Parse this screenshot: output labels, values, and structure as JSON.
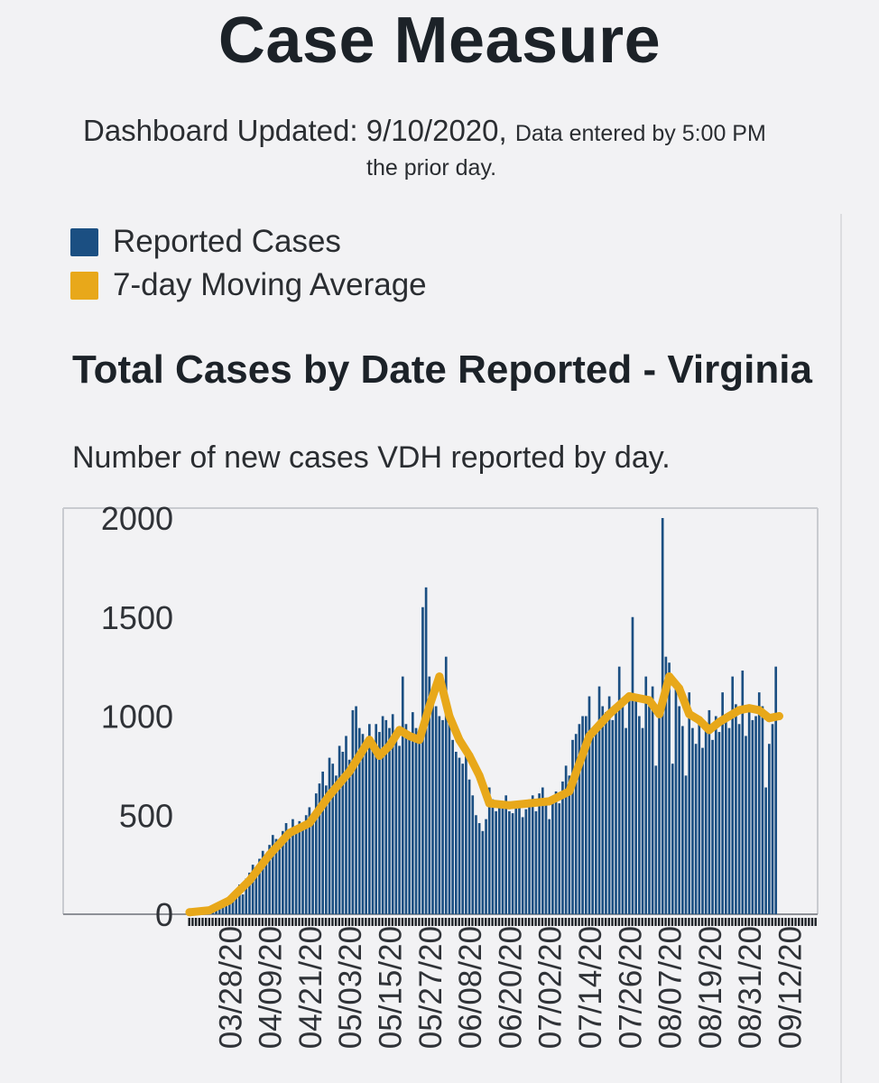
{
  "header": {
    "title": "Case Measure",
    "updated_text": "Dashboard Updated: 9/10/2020,",
    "data_note": "Data entered by 5:00 PM",
    "data_note_line2": "the prior day."
  },
  "legend": {
    "items": [
      {
        "label": "Reported Cases",
        "color": "#1b4f82"
      },
      {
        "label": "7-day Moving Average",
        "color": "#e8a81a"
      }
    ]
  },
  "chart_title": "Total Cases by Date Reported - Virginia",
  "chart_subtitle": "Number of new cases VDH reported by day.",
  "chart_data": {
    "type": "bar",
    "title": "Total Cases by Date Reported - Virginia",
    "subtitle": "Number of new cases VDH reported by day.",
    "xlabel": "",
    "ylabel": "",
    "ylim": [
      0,
      2000
    ],
    "yticks": [
      0,
      500,
      1000,
      1500,
      2000
    ],
    "grid": false,
    "legend_position": "top-left",
    "x_tick_labels": [
      "03/28/20",
      "04/09/20",
      "04/21/20",
      "05/03/20",
      "05/15/20",
      "05/27/20",
      "06/08/20",
      "06/20/20",
      "07/02/20",
      "07/14/20",
      "07/26/20",
      "08/07/20",
      "08/19/20",
      "08/31/20",
      "09/12/20"
    ],
    "axis_date_range": [
      "03/16/20",
      "09/20/20"
    ],
    "weekly_values": [
      {
        "week_of": "03/16/20",
        "values": [
          8,
          12,
          10,
          15,
          18,
          22,
          25
        ]
      },
      {
        "week_of": "03/23/20",
        "values": [
          30,
          40,
          35,
          55,
          60,
          80,
          70
        ]
      },
      {
        "week_of": "03/30/20",
        "values": [
          120,
          150,
          100,
          180,
          210,
          250,
          230
        ]
      },
      {
        "week_of": "04/06/20",
        "values": [
          280,
          320,
          260,
          350,
          400,
          380,
          330
        ]
      },
      {
        "week_of": "04/13/20",
        "values": [
          420,
          460,
          390,
          480,
          430,
          470,
          440
        ]
      },
      {
        "week_of": "04/20/20",
        "values": [
          500,
          540,
          470,
          610,
          660,
          720,
          650
        ]
      },
      {
        "week_of": "04/27/20",
        "values": [
          790,
          760,
          700,
          850,
          820,
          900,
          780
        ]
      },
      {
        "week_of": "05/04/20",
        "values": [
          1030,
          1050,
          940,
          910,
          880,
          960,
          850
        ]
      },
      {
        "week_of": "05/11/20",
        "values": [
          960,
          920,
          1000,
          980,
          940,
          1010,
          900
        ]
      },
      {
        "week_of": "05/18/20",
        "values": [
          850,
          1200,
          960,
          900,
          1020,
          940,
          870
        ]
      },
      {
        "week_of": "05/25/20",
        "values": [
          1550,
          1650,
          1200,
          1100,
          1050,
          1000,
          980
        ]
      },
      {
        "week_of": "06/01/20",
        "values": [
          1300,
          1050,
          880,
          820,
          790,
          760,
          840
        ]
      },
      {
        "week_of": "06/08/20",
        "values": [
          680,
          600,
          500,
          460,
          420,
          480,
          640
        ]
      },
      {
        "week_of": "06/15/20",
        "values": [
          580,
          520,
          560,
          540,
          600,
          520,
          510
        ]
      },
      {
        "week_of": "06/22/20",
        "values": [
          560,
          540,
          490,
          530,
          570,
          600,
          520
        ]
      },
      {
        "week_of": "06/29/20",
        "values": [
          610,
          640,
          550,
          480,
          590,
          620,
          560
        ]
      },
      {
        "week_of": "07/06/20",
        "values": [
          670,
          750,
          700,
          880,
          910,
          960,
          1000
        ]
      },
      {
        "week_of": "07/13/20",
        "values": [
          1000,
          1100,
          940,
          960,
          1150,
          1050,
          1020
        ]
      },
      {
        "week_of": "07/20/20",
        "values": [
          1100,
          980,
          1060,
          1250,
          1070,
          940,
          1100
        ]
      },
      {
        "week_of": "07/27/20",
        "values": [
          1500,
          1080,
          1000,
          940,
          1200,
          1050,
          1150
        ]
      },
      {
        "week_of": "08/03/20",
        "values": [
          750,
          1000,
          2000,
          1300,
          1270,
          760,
          1180
        ]
      },
      {
        "week_of": "08/10/20",
        "values": [
          1050,
          950,
          700,
          1120,
          940,
          860,
          1000
        ]
      },
      {
        "week_of": "08/17/20",
        "values": [
          840,
          960,
          1030,
          880,
          1000,
          920,
          1120
        ]
      },
      {
        "week_of": "08/24/20",
        "values": [
          1000,
          940,
          1200,
          1060,
          960,
          1230,
          900
        ]
      },
      {
        "week_of": "08/31/20",
        "values": [
          1050,
          980,
          1000,
          1120,
          1050,
          640,
          860
        ]
      },
      {
        "week_of": "09/07/20",
        "values": [
          960,
          1250,
          0,
          0,
          0,
          0,
          0
        ]
      },
      {
        "week_of": "09/14/20",
        "values": [
          0,
          0,
          0,
          0,
          0,
          0,
          0
        ]
      }
    ],
    "series": [
      {
        "name": "7-day Moving Average",
        "type": "line",
        "points": [
          {
            "date": "03/16/20",
            "value": 10
          },
          {
            "date": "03/22/20",
            "value": 20
          },
          {
            "date": "03/28/20",
            "value": 70
          },
          {
            "date": "04/03/20",
            "value": 170
          },
          {
            "date": "04/09/20",
            "value": 300
          },
          {
            "date": "04/15/20",
            "value": 410
          },
          {
            "date": "04/21/20",
            "value": 460
          },
          {
            "date": "04/27/20",
            "value": 600
          },
          {
            "date": "05/03/20",
            "value": 720
          },
          {
            "date": "05/09/20",
            "value": 880
          },
          {
            "date": "05/12/20",
            "value": 800
          },
          {
            "date": "05/15/20",
            "value": 850
          },
          {
            "date": "05/18/20",
            "value": 930
          },
          {
            "date": "05/21/20",
            "value": 900
          },
          {
            "date": "05/24/20",
            "value": 880
          },
          {
            "date": "05/27/20",
            "value": 1050
          },
          {
            "date": "05/30/20",
            "value": 1200
          },
          {
            "date": "06/02/20",
            "value": 1000
          },
          {
            "date": "06/05/20",
            "value": 880
          },
          {
            "date": "06/08/20",
            "value": 800
          },
          {
            "date": "06/11/20",
            "value": 700
          },
          {
            "date": "06/14/20",
            "value": 560
          },
          {
            "date": "06/20/20",
            "value": 550
          },
          {
            "date": "06/26/20",
            "value": 560
          },
          {
            "date": "07/02/20",
            "value": 570
          },
          {
            "date": "07/08/20",
            "value": 620
          },
          {
            "date": "07/14/20",
            "value": 900
          },
          {
            "date": "07/20/20",
            "value": 1010
          },
          {
            "date": "07/26/20",
            "value": 1100
          },
          {
            "date": "08/01/20",
            "value": 1080
          },
          {
            "date": "08/04/20",
            "value": 1010
          },
          {
            "date": "08/07/20",
            "value": 1200
          },
          {
            "date": "08/10/20",
            "value": 1140
          },
          {
            "date": "08/13/20",
            "value": 1010
          },
          {
            "date": "08/16/20",
            "value": 980
          },
          {
            "date": "08/19/20",
            "value": 930
          },
          {
            "date": "08/22/20",
            "value": 970
          },
          {
            "date": "08/25/20",
            "value": 1000
          },
          {
            "date": "08/28/20",
            "value": 1030
          },
          {
            "date": "08/31/20",
            "value": 1040
          },
          {
            "date": "09/03/20",
            "value": 1030
          },
          {
            "date": "09/06/20",
            "value": 990
          },
          {
            "date": "09/09/20",
            "value": 1000
          }
        ]
      }
    ]
  }
}
